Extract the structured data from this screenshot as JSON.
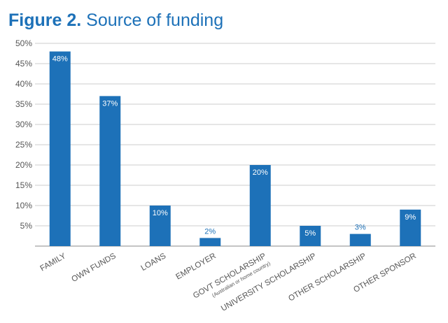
{
  "title": {
    "figure_label": "Figure 2.",
    "text": "Source of funding"
  },
  "chart_data": {
    "type": "bar",
    "title": "Figure 2. Source of funding",
    "xlabel": "",
    "ylabel": "",
    "ylim": [
      0,
      50
    ],
    "y_ticks": [
      {
        "value": 5,
        "label": "5%"
      },
      {
        "value": 10,
        "label": "10%"
      },
      {
        "value": 15,
        "label": "15%"
      },
      {
        "value": 20,
        "label": "20%"
      },
      {
        "value": 25,
        "label": "25%"
      },
      {
        "value": 30,
        "label": "30%"
      },
      {
        "value": 35,
        "label": "35%"
      },
      {
        "value": 40,
        "label": "40%"
      },
      {
        "value": 45,
        "label": "45%"
      },
      {
        "value": 50,
        "label": "50%"
      }
    ],
    "grid": true,
    "bar_color": "#1d71b8",
    "categories": [
      "FAMILY",
      "OWN FUNDS",
      "LOANS",
      "EMPLOYER",
      "GOVT SCHOLARSHIP",
      "UNIVERSITY SCHOLARSHIP",
      "OTHER SCHOLARSHIP",
      "OTHER SPONSOR"
    ],
    "category_notes": [
      "",
      "",
      "",
      "",
      "(Australian or home country)",
      "",
      "",
      ""
    ],
    "values": [
      48,
      37,
      10,
      2,
      20,
      5,
      3,
      9
    ],
    "value_labels": [
      "48%",
      "37%",
      "10%",
      "2%",
      "20%",
      "5%",
      "3%",
      "9%"
    ]
  }
}
